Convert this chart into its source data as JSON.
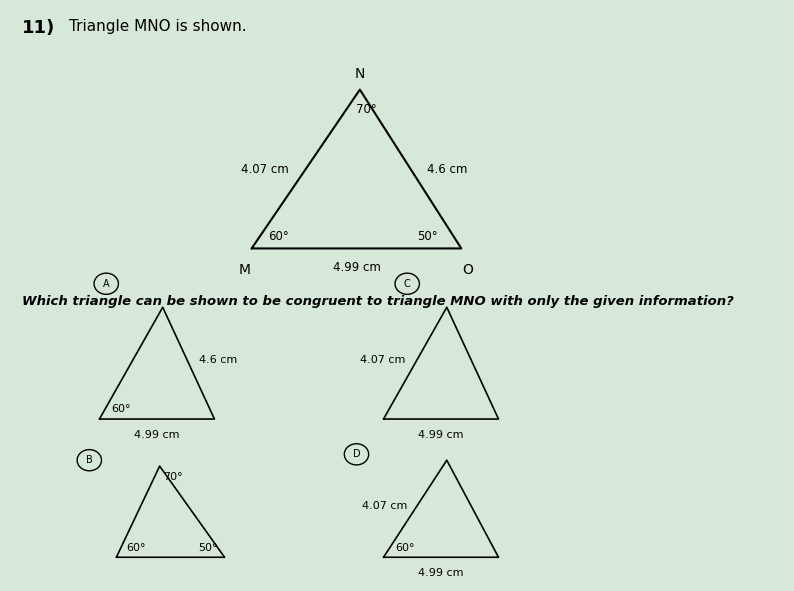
{
  "title_number": "11)",
  "title_text": "Triangle MNO is shown.",
  "question_text": "Which triangle can be shown to be congruent to triangle MNO with only the given information?",
  "background_color": "#d8e8d8",
  "triangle_color": "#000000"
}
